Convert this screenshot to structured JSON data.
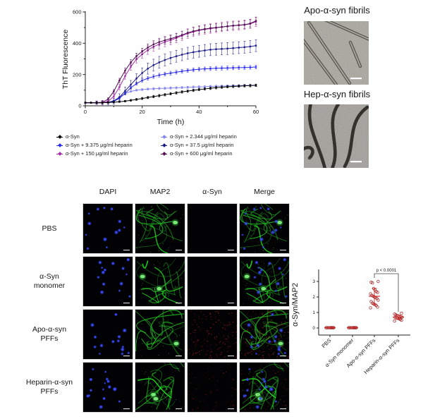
{
  "figure": {
    "description_labels": {
      "tht_ylabel": "ThT Fluorescence",
      "tht_xlabel": "Time (h)",
      "scatter_ylabel": "α-Syn/MAP2"
    }
  },
  "chart_data": [
    {
      "type": "line",
      "title": "",
      "xlabel": "Time (h)",
      "ylabel": "ThT Fluorescence",
      "xlim": [
        0,
        60
      ],
      "ylim": [
        0,
        600
      ],
      "xticks": [
        0,
        20,
        40,
        60
      ],
      "xticks_minor": [
        10,
        30,
        50
      ],
      "yticks": [
        0,
        200,
        400,
        600
      ],
      "yticks_minor": [
        100,
        300,
        500
      ],
      "legend_position": "below",
      "grid": false,
      "x": [
        0,
        2,
        4,
        6,
        8,
        10,
        12,
        14,
        16,
        18,
        20,
        22,
        24,
        26,
        28,
        30,
        32,
        34,
        36,
        38,
        40,
        42,
        44,
        46,
        48,
        50,
        52,
        54,
        56,
        58,
        60
      ],
      "series": [
        {
          "name": "α-Syn",
          "color": "#000000",
          "error": 8,
          "values": [
            20,
            20,
            20,
            20,
            21,
            23,
            26,
            30,
            35,
            41,
            47,
            53,
            59,
            65,
            71,
            77,
            83,
            89,
            94,
            99,
            104,
            108,
            112,
            116,
            119,
            122,
            124,
            126,
            128,
            129,
            131
          ]
        },
        {
          "name": "α-Syn + 2.344 μg/ml heparin",
          "color": "#8585f0",
          "error": 7,
          "values": [
            20,
            20,
            20,
            20,
            22,
            32,
            55,
            78,
            92,
            100,
            104,
            107,
            109,
            111,
            112,
            114,
            115,
            117,
            118,
            120,
            121,
            122,
            124,
            125,
            126,
            127,
            128,
            129,
            130,
            131,
            132
          ]
        },
        {
          "name": "α-Syn + 9.375 μg/ml heparin",
          "color": "#2c2cee",
          "error": 12,
          "values": [
            20,
            20,
            20,
            20,
            22,
            28,
            48,
            80,
            115,
            142,
            162,
            176,
            187,
            196,
            203,
            209,
            215,
            221,
            226,
            230,
            234,
            236,
            238,
            240,
            241,
            242,
            243,
            244,
            245,
            246,
            248
          ]
        },
        {
          "name": "α-Syn + 37.5 μg/ml heparin",
          "color": "#1c1c8a",
          "error": 38,
          "values": [
            20,
            20,
            20,
            20,
            23,
            30,
            55,
            95,
            135,
            175,
            210,
            238,
            260,
            278,
            293,
            306,
            317,
            327,
            336,
            343,
            349,
            354,
            359,
            362,
            364,
            366,
            369,
            372,
            375,
            379,
            385
          ]
        },
        {
          "name": "α-Syn + 150 μg/ml heparin",
          "color": "#a62ca6",
          "error": 30,
          "values": [
            20,
            20,
            20,
            21,
            28,
            60,
            120,
            190,
            250,
            298,
            330,
            357,
            378,
            394,
            408,
            420,
            433,
            448,
            462,
            473,
            482,
            489,
            494,
            499,
            504,
            509,
            512,
            515,
            518,
            524,
            538
          ]
        },
        {
          "name": "α-Syn + 600 μg/ml heparin",
          "color": "#551056",
          "error": 24,
          "values": [
            20,
            20,
            20,
            23,
            42,
            92,
            162,
            225,
            278,
            318,
            348,
            373,
            393,
            408,
            419,
            429,
            440,
            453,
            467,
            477,
            485,
            491,
            497,
            500,
            504,
            508,
            513,
            516,
            519,
            527,
            543
          ]
        }
      ]
    },
    {
      "type": "scatter",
      "title": "",
      "ylabel": "α-Syn/MAP2",
      "ylim": [
        0,
        3.5
      ],
      "yticks": [
        0,
        1,
        2,
        3
      ],
      "point_color": "#9b1c1c",
      "mean_color": "#d03030",
      "categories": [
        "PBS",
        "α-Syn monomer",
        "Apo-α-syn PFFs",
        "Heparin-α-syn PFFs"
      ],
      "groups": [
        {
          "name": "PBS",
          "values": [
            0.02,
            0.02,
            0.02,
            0.02,
            0.02,
            0.02,
            0.02,
            0.02,
            0.02,
            0.02
          ]
        },
        {
          "name": "α-Syn monomer",
          "values": [
            0.02,
            0.02,
            0.02,
            0.02,
            0.02,
            0.02,
            0.02,
            0.02,
            0.02,
            0.02
          ]
        },
        {
          "name": "Apo-α-syn PFFs",
          "values": [
            1.3,
            1.35,
            1.45,
            1.5,
            1.55,
            1.6,
            1.7,
            1.8,
            1.9,
            1.95,
            2.0,
            2.05,
            2.1,
            2.2,
            2.3,
            2.35,
            2.45,
            2.55,
            2.9,
            2.95,
            3.0
          ]
        },
        {
          "name": "Heparin-α-syn PFFs",
          "values": [
            0.45,
            0.5,
            0.55,
            0.6,
            0.62,
            0.65,
            0.68,
            0.7,
            0.72,
            0.75,
            0.78,
            0.8,
            0.85,
            0.9,
            0.95
          ]
        }
      ],
      "annotation": {
        "text": "p < 0.0001",
        "between": [
          "Apo-α-syn PFFs",
          "Heparin-α-syn PFFs"
        ]
      }
    }
  ],
  "em_panels": {
    "apo": {
      "title": "Apo-α-syn fibrils",
      "morphology": "straight-fibrils"
    },
    "hep": {
      "title": "Hep-α-syn fibrils",
      "morphology": "twisted-fibrils"
    }
  },
  "microscopy": {
    "columns": [
      "DAPI",
      "MAP2",
      "α-Syn",
      "Merge"
    ],
    "channel_colors": {
      "dapi": "#2433d6",
      "map2": "#2fbf2f",
      "syn": "#c62020"
    },
    "rows": [
      {
        "label": "PBS",
        "label_lines": [
          "PBS"
        ],
        "syn_level": 0
      },
      {
        "label": "α-Syn monomer",
        "label_lines": [
          "α-Syn",
          "monomer"
        ],
        "syn_level": 0
      },
      {
        "label": "Apo-α-syn PFFs",
        "label_lines": [
          "Apo-α-syn",
          "PFFs"
        ],
        "syn_level": 0.9
      },
      {
        "label": "Heparin-α-syn PFFs",
        "label_lines": [
          "Heparin-α-syn",
          "PFFs"
        ],
        "syn_level": 0.35
      }
    ]
  }
}
